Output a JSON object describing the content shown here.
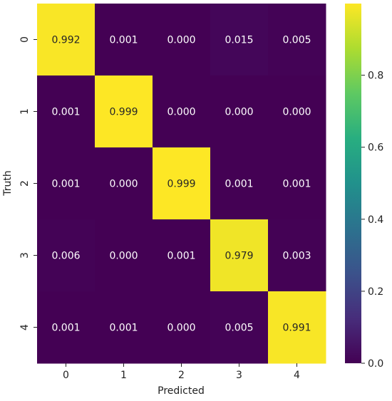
{
  "chart_data": {
    "type": "heatmap",
    "title": "",
    "xlabel": "Predicted",
    "ylabel": "Truth",
    "x_categories": [
      "0",
      "1",
      "2",
      "3",
      "4"
    ],
    "y_categories": [
      "0",
      "1",
      "2",
      "3",
      "4"
    ],
    "values": [
      [
        0.992,
        0.001,
        0.0,
        0.015,
        0.005
      ],
      [
        0.001,
        0.999,
        0.0,
        0.0,
        0.0
      ],
      [
        0.001,
        0.0,
        0.999,
        0.001,
        0.001
      ],
      [
        0.006,
        0.0,
        0.001,
        0.979,
        0.003
      ],
      [
        0.001,
        0.001,
        0.0,
        0.005,
        0.991
      ]
    ],
    "cell_labels": [
      [
        "0.992",
        "0.001",
        "0.000",
        "0.015",
        "0.005"
      ],
      [
        "0.001",
        "0.999",
        "0.000",
        "0.000",
        "0.000"
      ],
      [
        "0.001",
        "0.000",
        "0.999",
        "0.001",
        "0.001"
      ],
      [
        "0.006",
        "0.000",
        "0.001",
        "0.979",
        "0.003"
      ],
      [
        "0.001",
        "0.001",
        "0.000",
        "0.005",
        "0.991"
      ]
    ],
    "colormap": "viridis",
    "colorbar": {
      "range": [
        0,
        0.999
      ],
      "ticks": [
        0.0,
        0.2,
        0.4,
        0.6,
        0.8
      ],
      "tick_labels": [
        "0.0",
        "0.2",
        "0.4",
        "0.6",
        "0.8"
      ]
    },
    "grid": false,
    "legend": "none"
  }
}
